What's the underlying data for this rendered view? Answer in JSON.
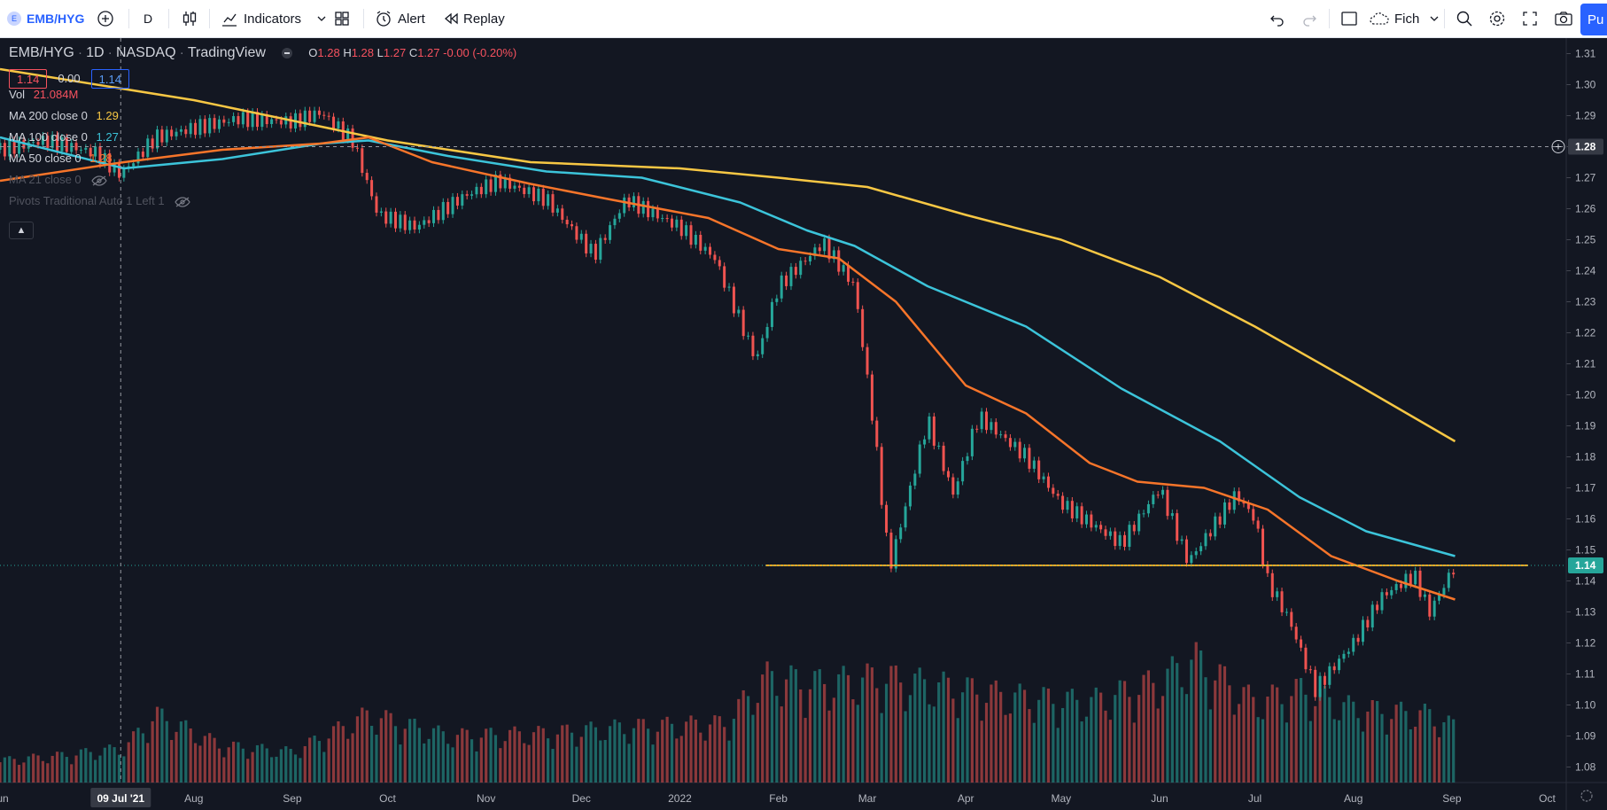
{
  "toolbar": {
    "symbol": "EMB/HYG",
    "interval": "D",
    "indicators_label": "Indicators",
    "alert_label": "Alert",
    "replay_label": "Replay",
    "template_label": "Fich",
    "publish_label": "Pu"
  },
  "legend": {
    "symbol": "EMB/HYG",
    "interval": "1D",
    "exchange": "NASDAQ",
    "source": "TradingView",
    "open_label": "O",
    "open": "1.28",
    "high_label": "H",
    "high": "1.28",
    "low_label": "L",
    "low": "1.27",
    "close_label": "C",
    "close": "1.27",
    "change": "-0.00 (-0.20%)",
    "bid": "1.14",
    "spread": "0.00",
    "ask": "1.14"
  },
  "indicators": [
    {
      "name": "Vol",
      "value": "21.084M",
      "color": "#f7525f"
    },
    {
      "name": "MA 200 close 0",
      "value": "1.29",
      "color": "#f7c744"
    },
    {
      "name": "MA 100 close 0",
      "value": "1.27",
      "color": "#3cc4da"
    },
    {
      "name": "MA 50 close 0",
      "value": "1.28",
      "color": "#f7752a"
    },
    {
      "name": "MA 21 close 0",
      "value": "",
      "color": "#787b86"
    },
    {
      "name": "Pivots Traditional Auto 1 Left 1",
      "value": "",
      "color": "#787b86"
    }
  ],
  "colors": {
    "background": "#131722",
    "up": "#26a69a",
    "down": "#ef5350",
    "ma200": "#f7c744",
    "ma100": "#3cc4da",
    "ma50": "#f7752a",
    "support_line": "#f9a825",
    "price_badge": "#26a69a"
  },
  "chart_data": {
    "type": "line",
    "ylim": [
      1.075,
      1.315
    ],
    "y_ticks": [
      "1.31",
      "1.30",
      "1.29",
      "1.28",
      "1.27",
      "1.26",
      "1.25",
      "1.24",
      "1.23",
      "1.22",
      "1.21",
      "1.20",
      "1.19",
      "1.18",
      "1.17",
      "1.16",
      "1.15",
      "1.14",
      "1.13",
      "1.12",
      "1.11",
      "1.10",
      "1.09",
      "1.08"
    ],
    "x_ticks": [
      "Jun",
      "Aug",
      "Sep",
      "Oct",
      "Nov",
      "Dec",
      "2022",
      "Feb",
      "Mar",
      "Apr",
      "May",
      "Jun",
      "Jul",
      "Aug",
      "Sep",
      "Oct"
    ],
    "x_range": [
      "2021-06-01",
      "2022-10-07"
    ],
    "crosshair_date_label": "09 Jul '21",
    "crosshair_price_label": "1.28",
    "crosshair_price": 1.28,
    "crosshair_date": "2021-07-09",
    "last_price_label": "1.14",
    "last_price": 1.145,
    "support_level": 1.145,
    "support_from": "2022-01-28",
    "support_to": "2022-09-25",
    "close_series": [
      {
        "date": "2021-06-01",
        "value": 1.279
      },
      {
        "date": "2021-06-15",
        "value": 1.282
      },
      {
        "date": "2021-07-01",
        "value": 1.278
      },
      {
        "date": "2021-07-09",
        "value": 1.271
      },
      {
        "date": "2021-07-20",
        "value": 1.283
      },
      {
        "date": "2021-08-01",
        "value": 1.286
      },
      {
        "date": "2021-08-15",
        "value": 1.289
      },
      {
        "date": "2021-09-01",
        "value": 1.288
      },
      {
        "date": "2021-09-10",
        "value": 1.291
      },
      {
        "date": "2021-09-20",
        "value": 1.282
      },
      {
        "date": "2021-09-28",
        "value": 1.258
      },
      {
        "date": "2021-10-10",
        "value": 1.254
      },
      {
        "date": "2021-10-25",
        "value": 1.264
      },
      {
        "date": "2021-11-05",
        "value": 1.269
      },
      {
        "date": "2021-11-20",
        "value": 1.263
      },
      {
        "date": "2021-12-05",
        "value": 1.245
      },
      {
        "date": "2021-12-15",
        "value": 1.263
      },
      {
        "date": "2022-01-01",
        "value": 1.254
      },
      {
        "date": "2022-01-12",
        "value": 1.244
      },
      {
        "date": "2022-01-25",
        "value": 1.211
      },
      {
        "date": "2022-02-01",
        "value": 1.235
      },
      {
        "date": "2022-02-15",
        "value": 1.249
      },
      {
        "date": "2022-02-25",
        "value": 1.235
      },
      {
        "date": "2022-03-03",
        "value": 1.19
      },
      {
        "date": "2022-03-08",
        "value": 1.144
      },
      {
        "date": "2022-03-20",
        "value": 1.192
      },
      {
        "date": "2022-03-28",
        "value": 1.168
      },
      {
        "date": "2022-04-05",
        "value": 1.193
      },
      {
        "date": "2022-04-20",
        "value": 1.18
      },
      {
        "date": "2022-05-01",
        "value": 1.165
      },
      {
        "date": "2022-05-20",
        "value": 1.152
      },
      {
        "date": "2022-06-01",
        "value": 1.17
      },
      {
        "date": "2022-06-10",
        "value": 1.146
      },
      {
        "date": "2022-06-25",
        "value": 1.168
      },
      {
        "date": "2022-07-01",
        "value": 1.16
      },
      {
        "date": "2022-07-05",
        "value": 1.14
      },
      {
        "date": "2022-07-12",
        "value": 1.127
      },
      {
        "date": "2022-07-20",
        "value": 1.105
      },
      {
        "date": "2022-08-01",
        "value": 1.12
      },
      {
        "date": "2022-08-10",
        "value": 1.135
      },
      {
        "date": "2022-08-20",
        "value": 1.142
      },
      {
        "date": "2022-08-25",
        "value": 1.13
      },
      {
        "date": "2022-09-02",
        "value": 1.145
      }
    ],
    "series": [
      {
        "name": "MA 200 close 0",
        "points": [
          {
            "date": "2021-06-01",
            "value": 1.305
          },
          {
            "date": "2021-08-01",
            "value": 1.295
          },
          {
            "date": "2021-10-01",
            "value": 1.282
          },
          {
            "date": "2021-11-15",
            "value": 1.275
          },
          {
            "date": "2022-01-01",
            "value": 1.273
          },
          {
            "date": "2022-02-01",
            "value": 1.27
          },
          {
            "date": "2022-03-01",
            "value": 1.267
          },
          {
            "date": "2022-04-01",
            "value": 1.258
          },
          {
            "date": "2022-05-01",
            "value": 1.25
          },
          {
            "date": "2022-06-01",
            "value": 1.238
          },
          {
            "date": "2022-07-01",
            "value": 1.222
          },
          {
            "date": "2022-08-01",
            "value": 1.204
          },
          {
            "date": "2022-09-02",
            "value": 1.185
          }
        ]
      },
      {
        "name": "MA 100 close 0",
        "points": [
          {
            "date": "2021-06-01",
            "value": 1.283
          },
          {
            "date": "2021-07-10",
            "value": 1.273
          },
          {
            "date": "2021-08-10",
            "value": 1.276
          },
          {
            "date": "2021-09-10",
            "value": 1.281
          },
          {
            "date": "2021-09-25",
            "value": 1.282
          },
          {
            "date": "2021-10-20",
            "value": 1.277
          },
          {
            "date": "2021-11-20",
            "value": 1.272
          },
          {
            "date": "2021-12-20",
            "value": 1.27
          },
          {
            "date": "2022-01-20",
            "value": 1.262
          },
          {
            "date": "2022-02-10",
            "value": 1.253
          },
          {
            "date": "2022-02-25",
            "value": 1.248
          },
          {
            "date": "2022-03-20",
            "value": 1.235
          },
          {
            "date": "2022-04-20",
            "value": 1.222
          },
          {
            "date": "2022-05-20",
            "value": 1.202
          },
          {
            "date": "2022-06-20",
            "value": 1.185
          },
          {
            "date": "2022-07-15",
            "value": 1.167
          },
          {
            "date": "2022-08-05",
            "value": 1.156
          },
          {
            "date": "2022-09-02",
            "value": 1.148
          }
        ]
      },
      {
        "name": "MA 50 close 0",
        "points": [
          {
            "date": "2021-06-01",
            "value": 1.269
          },
          {
            "date": "2021-07-10",
            "value": 1.275
          },
          {
            "date": "2021-08-10",
            "value": 1.279
          },
          {
            "date": "2021-09-10",
            "value": 1.281
          },
          {
            "date": "2021-09-25",
            "value": 1.283
          },
          {
            "date": "2021-10-15",
            "value": 1.275
          },
          {
            "date": "2021-11-15",
            "value": 1.268
          },
          {
            "date": "2021-12-10",
            "value": 1.263
          },
          {
            "date": "2022-01-10",
            "value": 1.257
          },
          {
            "date": "2022-02-01",
            "value": 1.247
          },
          {
            "date": "2022-02-20",
            "value": 1.244
          },
          {
            "date": "2022-03-10",
            "value": 1.23
          },
          {
            "date": "2022-04-01",
            "value": 1.203
          },
          {
            "date": "2022-04-20",
            "value": 1.194
          },
          {
            "date": "2022-05-10",
            "value": 1.178
          },
          {
            "date": "2022-05-25",
            "value": 1.172
          },
          {
            "date": "2022-06-15",
            "value": 1.17
          },
          {
            "date": "2022-07-05",
            "value": 1.163
          },
          {
            "date": "2022-07-25",
            "value": 1.148
          },
          {
            "date": "2022-08-15",
            "value": 1.14
          },
          {
            "date": "2022-09-02",
            "value": 1.134
          }
        ]
      }
    ],
    "volume_axis_max": 1.0,
    "volume": [
      {
        "date": "2021-06-01",
        "value": 0.18,
        "up": true
      },
      {
        "date": "2021-06-20",
        "value": 0.22,
        "up": false
      },
      {
        "date": "2021-07-10",
        "value": 0.28,
        "up": true
      },
      {
        "date": "2021-07-20",
        "value": 0.55,
        "up": true
      },
      {
        "date": "2021-08-10",
        "value": 0.3,
        "up": false
      },
      {
        "date": "2021-09-01",
        "value": 0.25,
        "up": true
      },
      {
        "date": "2021-09-25",
        "value": 0.55,
        "up": false
      },
      {
        "date": "2021-10-20",
        "value": 0.38,
        "up": true
      },
      {
        "date": "2021-11-20",
        "value": 0.4,
        "up": false
      },
      {
        "date": "2021-12-15",
        "value": 0.45,
        "up": true
      },
      {
        "date": "2022-01-15",
        "value": 0.48,
        "up": false
      },
      {
        "date": "2022-01-28",
        "value": 0.85,
        "up": false
      },
      {
        "date": "2022-02-15",
        "value": 0.8,
        "up": false
      },
      {
        "date": "2022-03-05",
        "value": 0.85,
        "up": false
      },
      {
        "date": "2022-03-25",
        "value": 0.78,
        "up": true
      },
      {
        "date": "2022-04-15",
        "value": 0.7,
        "up": false
      },
      {
        "date": "2022-05-10",
        "value": 0.65,
        "up": true
      },
      {
        "date": "2022-06-01",
        "value": 0.82,
        "up": false
      },
      {
        "date": "2022-06-12",
        "value": 1.0,
        "up": true
      },
      {
        "date": "2022-07-01",
        "value": 0.65,
        "up": false
      },
      {
        "date": "2022-07-15",
        "value": 0.75,
        "up": false
      },
      {
        "date": "2022-08-01",
        "value": 0.6,
        "up": true
      },
      {
        "date": "2022-08-25",
        "value": 0.55,
        "up": true
      },
      {
        "date": "2022-09-02",
        "value": 0.45,
        "up": true
      }
    ]
  }
}
